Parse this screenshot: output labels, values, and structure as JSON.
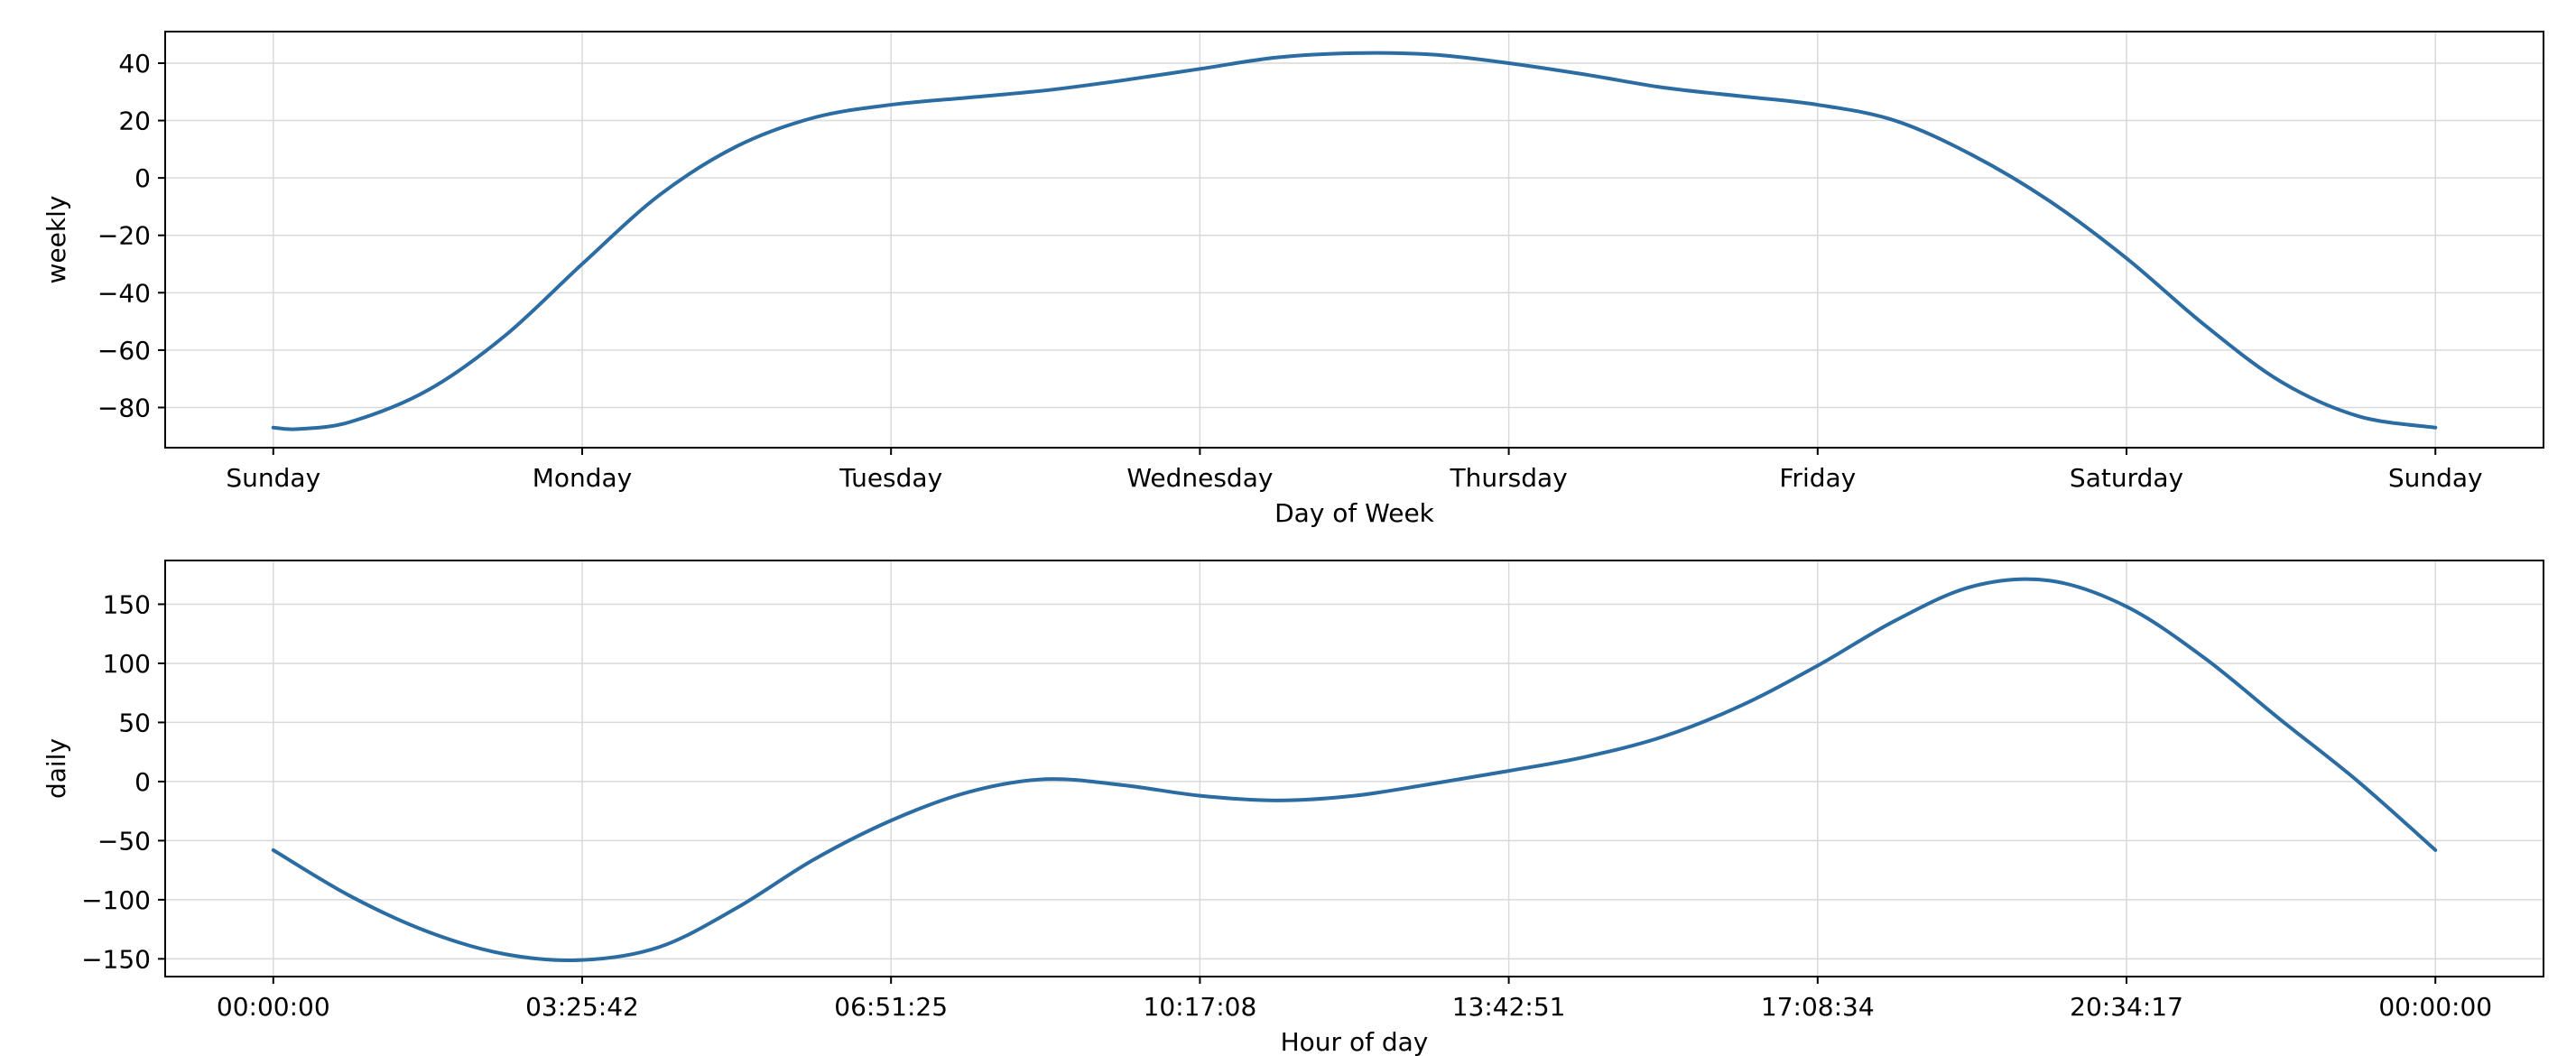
{
  "chart_data": [
    {
      "type": "line",
      "xlabel": "Day of Week",
      "ylabel": "weekly",
      "xlim": [
        -0.35,
        7.35
      ],
      "ylim": [
        -94,
        51
      ],
      "xticks": [
        {
          "value": 0,
          "label": "Sunday"
        },
        {
          "value": 1,
          "label": "Monday"
        },
        {
          "value": 2,
          "label": "Tuesday"
        },
        {
          "value": 3,
          "label": "Wednesday"
        },
        {
          "value": 4,
          "label": "Thursday"
        },
        {
          "value": 5,
          "label": "Friday"
        },
        {
          "value": 6,
          "label": "Saturday"
        },
        {
          "value": 7,
          "label": "Sunday"
        }
      ],
      "yticks": [
        40,
        20,
        0,
        -20,
        -40,
        -60,
        -80
      ],
      "ytick_labels": [
        "40",
        "20",
        "0",
        "−20",
        "−40",
        "−60",
        "−80"
      ],
      "grid": true,
      "series": [
        {
          "color": "#2b6ca3",
          "x": [
            0,
            0.08,
            0.25,
            0.5,
            0.75,
            1.0,
            1.25,
            1.5,
            1.75,
            2.0,
            2.25,
            2.5,
            2.75,
            3.0,
            3.25,
            3.5,
            3.75,
            4.0,
            4.25,
            4.5,
            4.75,
            5.0,
            5.25,
            5.5,
            5.75,
            6.0,
            6.25,
            6.5,
            6.75,
            7.0
          ],
          "y": [
            -87,
            -87.5,
            -85,
            -74,
            -55,
            -30,
            -6,
            11,
            21,
            25.5,
            28,
            30.5,
            34,
            38,
            42,
            43.5,
            43,
            40,
            36,
            31.5,
            28.5,
            25.5,
            20,
            8,
            -8,
            -28,
            -51,
            -71,
            -83,
            -87
          ]
        }
      ]
    },
    {
      "type": "line",
      "xlabel": "Hour of day",
      "ylabel": "daily",
      "xlim": [
        -0.35,
        7.35
      ],
      "ylim": [
        -165,
        187
      ],
      "xticks": [
        {
          "value": 0,
          "label": "00:00:00"
        },
        {
          "value": 1,
          "label": "03:25:42"
        },
        {
          "value": 2,
          "label": "06:51:25"
        },
        {
          "value": 3,
          "label": "10:17:08"
        },
        {
          "value": 4,
          "label": "13:42:51"
        },
        {
          "value": 5,
          "label": "17:08:34"
        },
        {
          "value": 6,
          "label": "20:34:17"
        },
        {
          "value": 7,
          "label": "00:00:00"
        }
      ],
      "yticks": [
        150,
        100,
        50,
        0,
        -50,
        -100,
        -150
      ],
      "ytick_labels": [
        "150",
        "100",
        "50",
        "0",
        "−50",
        "−100",
        "−150"
      ],
      "grid": true,
      "series": [
        {
          "color": "#2b6ca3",
          "x": [
            0,
            0.25,
            0.5,
            0.75,
            1.0,
            1.25,
            1.5,
            1.75,
            2.0,
            2.25,
            2.5,
            2.75,
            3.0,
            3.25,
            3.5,
            3.75,
            4.0,
            4.25,
            4.5,
            4.75,
            5.0,
            5.25,
            5.5,
            5.75,
            6.0,
            6.25,
            6.5,
            6.75,
            7.0
          ],
          "y": [
            -58,
            -97,
            -127,
            -146,
            -151,
            -140,
            -107,
            -66,
            -33,
            -9,
            2,
            -3,
            -12,
            -16,
            -12,
            -2,
            9,
            21,
            38,
            64,
            98,
            136,
            165,
            170,
            148,
            105,
            52,
            0,
            -58
          ]
        }
      ]
    }
  ]
}
